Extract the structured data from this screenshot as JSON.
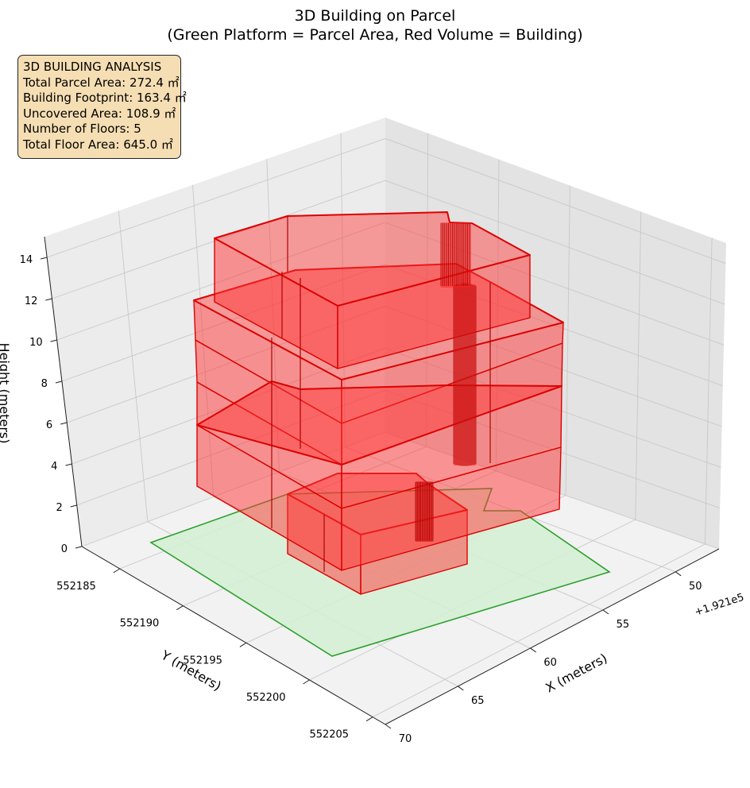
{
  "chart_data": {
    "type": "3d-polygons",
    "title_line1": "3D Building on Parcel",
    "title_line2": "(Green Platform = Parcel Area, Red Volume = Building)",
    "xlabel": "X (meters)",
    "ylabel": "Y (meters)",
    "zlabel": "Height (meters)",
    "x_offset_label": "+1.921e5",
    "x_ticks": [
      "50",
      "55",
      "60",
      "65",
      "70"
    ],
    "y_ticks": [
      "552185",
      "552190",
      "552195",
      "552200",
      "552205"
    ],
    "z_ticks": [
      "0",
      "2",
      "4",
      "6",
      "8",
      "10",
      "12",
      "14"
    ],
    "xlim": [
      192147,
      192170
    ],
    "ylim": [
      552182,
      552206
    ],
    "zlim": [
      0,
      15
    ],
    "parcel_color": "#2ca02c",
    "parcel_fill": "#d4f0d4",
    "building_color": "#dd0000",
    "building_fill": "#ff3333"
  },
  "info": {
    "title": "3D BUILDING ANALYSIS",
    "parcel_area": "Total Parcel Area: 272.4 ㎡",
    "footprint": "Building Footprint: 163.4 ㎡",
    "uncovered": "Uncovered Area: 108.9 ㎡",
    "floors": "Number of Floors: 5",
    "floor_area": "Total Floor Area: 645.0 ㎡"
  }
}
